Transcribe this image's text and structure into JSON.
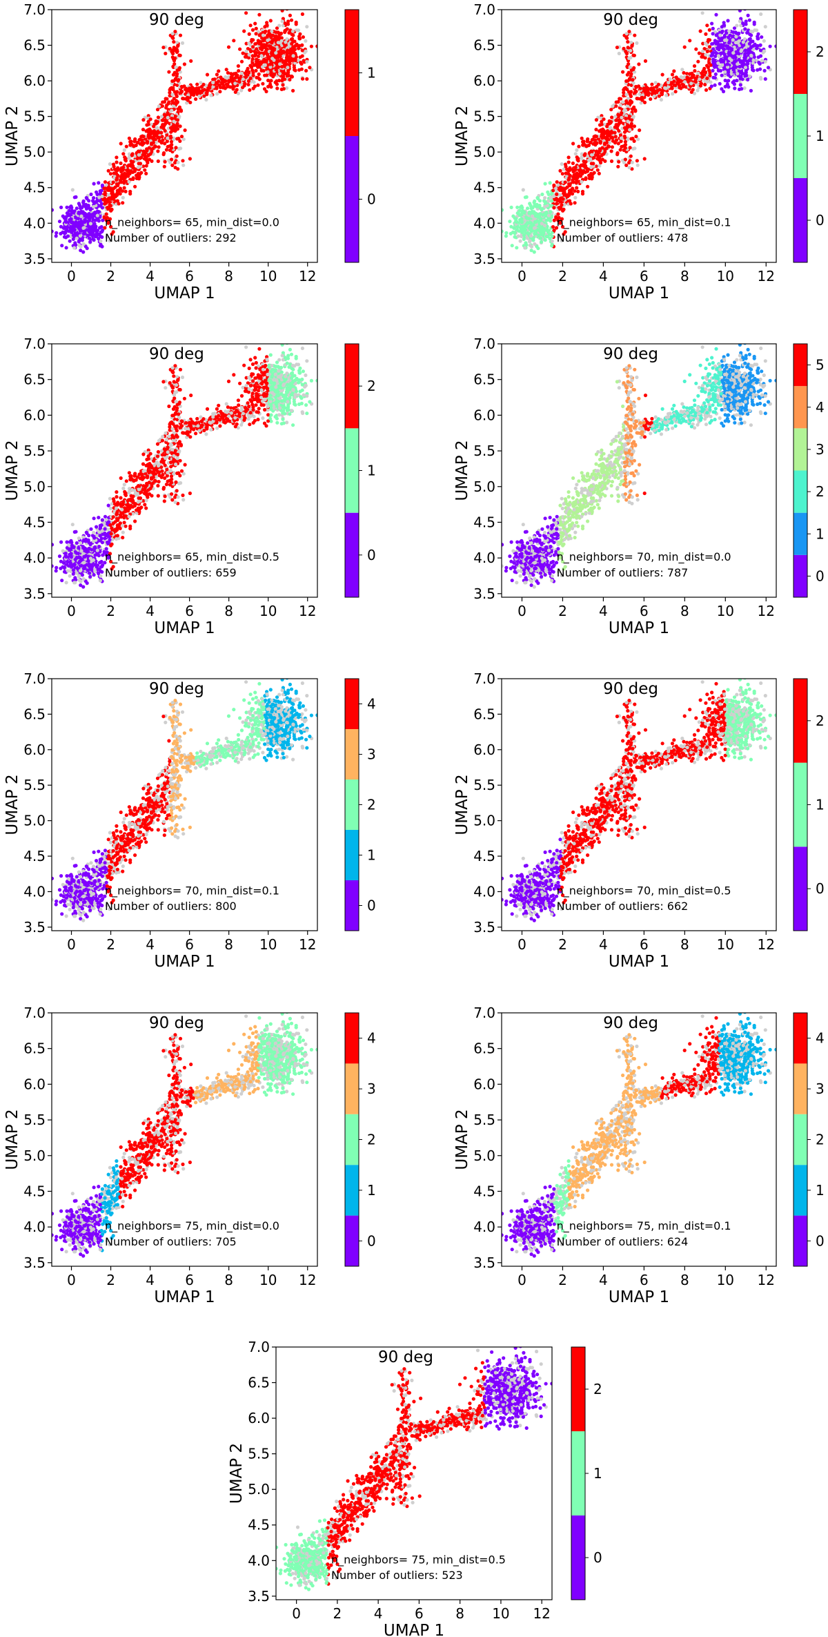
{
  "figure": {
    "description_free": true
  },
  "chart_data": [
    {
      "type": "scatter",
      "title": "90 deg",
      "xlabel": "UMAP 1",
      "ylabel": "UMAP 2",
      "xlim": [
        -1,
        12.5
      ],
      "ylim": [
        3.45,
        7.0
      ],
      "xticks": [
        0,
        2,
        4,
        6,
        8,
        10,
        12
      ],
      "yticks": [
        3.5,
        4.0,
        4.5,
        5.0,
        5.5,
        6.0,
        6.5,
        7.0
      ],
      "annotation": [
        "n_neighbors= 65, min_dist=0.0",
        "Number of outliers: 292"
      ],
      "n_neighbors": 65,
      "min_dist": 0.0,
      "outliers": 292,
      "colorbar": {
        "colors": [
          "#8000ff",
          "#ff0000"
        ],
        "labels": [
          "0",
          "1"
        ]
      },
      "series": [
        {
          "name": "0",
          "color": "#8000ff",
          "x_range": [
            -0.5,
            1.6
          ]
        },
        {
          "name": "1",
          "color": "#ff0000",
          "x_range": [
            1.6,
            12.0
          ]
        }
      ]
    },
    {
      "type": "scatter",
      "title": "90 deg",
      "xlabel": "UMAP 1",
      "ylabel": "UMAP 2",
      "xlim": [
        -1,
        12.5
      ],
      "ylim": [
        3.45,
        7.0
      ],
      "xticks": [
        0,
        2,
        4,
        6,
        8,
        10,
        12
      ],
      "yticks": [
        3.5,
        4.0,
        4.5,
        5.0,
        5.5,
        6.0,
        6.5,
        7.0
      ],
      "annotation": [
        "n_neighbors= 65, min_dist=0.1",
        "Number of outliers: 478"
      ],
      "n_neighbors": 65,
      "min_dist": 0.1,
      "outliers": 478,
      "colorbar": {
        "colors": [
          "#8000ff",
          "#80ffb4",
          "#ff0000"
        ],
        "labels": [
          "0",
          "1",
          "2"
        ]
      },
      "series": [
        {
          "name": "0",
          "color": "#8000ff",
          "x_range": [
            9.3,
            12.0
          ]
        },
        {
          "name": "1",
          "color": "#80ffb4",
          "x_range": [
            -0.5,
            1.5
          ]
        },
        {
          "name": "2",
          "color": "#ff0000",
          "x_range": [
            1.5,
            9.3
          ]
        }
      ]
    },
    {
      "type": "scatter",
      "title": "90 deg",
      "xlabel": "UMAP 1",
      "ylabel": "UMAP 2",
      "xlim": [
        -1,
        12.5
      ],
      "ylim": [
        3.45,
        7.0
      ],
      "xticks": [
        0,
        2,
        4,
        6,
        8,
        10,
        12
      ],
      "yticks": [
        3.5,
        4.0,
        4.5,
        5.0,
        5.5,
        6.0,
        6.5,
        7.0
      ],
      "annotation": [
        "n_neighbors= 65, min_dist=0.5",
        "Number of outliers: 659"
      ],
      "n_neighbors": 65,
      "min_dist": 0.5,
      "outliers": 659,
      "colorbar": {
        "colors": [
          "#8000ff",
          "#80ffb4",
          "#ff0000"
        ],
        "labels": [
          "0",
          "1",
          "2"
        ]
      },
      "series": [
        {
          "name": "0",
          "color": "#8000ff",
          "x_range": [
            -0.5,
            1.6
          ]
        },
        {
          "name": "1",
          "color": "#80ffb4",
          "x_range": [
            10.0,
            12.0
          ]
        },
        {
          "name": "2",
          "color": "#ff0000",
          "x_range": [
            2.3,
            10.0
          ]
        }
      ]
    },
    {
      "type": "scatter",
      "title": "90 deg",
      "xlabel": "UMAP 1",
      "ylabel": "UMAP 2",
      "xlim": [
        -1,
        12.5
      ],
      "ylim": [
        3.45,
        7.0
      ],
      "xticks": [
        0,
        2,
        4,
        6,
        8,
        10,
        12
      ],
      "yticks": [
        3.5,
        4.0,
        4.5,
        5.0,
        5.5,
        6.0,
        6.5,
        7.0
      ],
      "annotation": [
        "n_neighbors= 70, min_dist=0.0",
        "Number of outliers: 787"
      ],
      "n_neighbors": 70,
      "min_dist": 0.0,
      "outliers": 787,
      "colorbar": {
        "colors": [
          "#8000ff",
          "#1996f3",
          "#4df3ce",
          "#b2f396",
          "#ff964f",
          "#ff0000"
        ],
        "labels": [
          "0",
          "1",
          "2",
          "3",
          "4",
          "5"
        ]
      },
      "series": [
        {
          "name": "0",
          "color": "#8000ff",
          "x_range": [
            -0.5,
            1.4
          ]
        },
        {
          "name": "1",
          "color": "#1996f3",
          "x_range": [
            9.8,
            12.0
          ]
        },
        {
          "name": "2",
          "color": "#4df3ce",
          "x_range": [
            6.4,
            9.8
          ]
        },
        {
          "name": "3",
          "color": "#b2f396",
          "x_range": [
            2.2,
            5.0
          ]
        },
        {
          "name": "4",
          "color": "#ff964f",
          "x_range": [
            5.0,
            6.0
          ]
        },
        {
          "name": "5",
          "color": "#ff0000",
          "x_range": [
            5.3,
            6.4
          ]
        }
      ]
    },
    {
      "type": "scatter",
      "title": "90 deg",
      "xlabel": "UMAP 1",
      "ylabel": "UMAP 2",
      "xlim": [
        -1,
        12.5
      ],
      "ylim": [
        3.45,
        7.0
      ],
      "xticks": [
        0,
        2,
        4,
        6,
        8,
        10,
        12
      ],
      "yticks": [
        3.5,
        4.0,
        4.5,
        5.0,
        5.5,
        6.0,
        6.5,
        7.0
      ],
      "annotation": [
        "n_neighbors= 70, min_dist=0.1",
        "Number of outliers: 800"
      ],
      "n_neighbors": 70,
      "min_dist": 0.1,
      "outliers": 800,
      "colorbar": {
        "colors": [
          "#8000ff",
          "#00b5eb",
          "#80ffb4",
          "#ffb360",
          "#ff0000"
        ],
        "labels": [
          "0",
          "1",
          "2",
          "3",
          "4"
        ]
      },
      "series": [
        {
          "name": "0",
          "color": "#8000ff",
          "x_range": [
            -0.5,
            1.4
          ]
        },
        {
          "name": "1",
          "color": "#00b5eb",
          "x_range": [
            9.8,
            12.0
          ]
        },
        {
          "name": "2",
          "color": "#80ffb4",
          "x_range": [
            6.3,
            9.8
          ]
        },
        {
          "name": "3",
          "color": "#ffb360",
          "x_range": [
            5.0,
            6.3
          ]
        },
        {
          "name": "4",
          "color": "#ff0000",
          "x_range": [
            2.2,
            5.6
          ]
        }
      ]
    },
    {
      "type": "scatter",
      "title": "90 deg",
      "xlabel": "UMAP 1",
      "ylabel": "UMAP 2",
      "xlim": [
        -1,
        12.5
      ],
      "ylim": [
        3.45,
        7.0
      ],
      "xticks": [
        0,
        2,
        4,
        6,
        8,
        10,
        12
      ],
      "yticks": [
        3.5,
        4.0,
        4.5,
        5.0,
        5.5,
        6.0,
        6.5,
        7.0
      ],
      "annotation": [
        "n_neighbors= 70, min_dist=0.5",
        "Number of outliers: 662"
      ],
      "n_neighbors": 70,
      "min_dist": 0.5,
      "outliers": 662,
      "colorbar": {
        "colors": [
          "#8000ff",
          "#80ffb4",
          "#ff0000"
        ],
        "labels": [
          "0",
          "1",
          "2"
        ]
      },
      "series": [
        {
          "name": "0",
          "color": "#8000ff",
          "x_range": [
            -0.5,
            1.9
          ]
        },
        {
          "name": "1",
          "color": "#80ffb4",
          "x_range": [
            10.0,
            12.0
          ]
        },
        {
          "name": "2",
          "color": "#ff0000",
          "x_range": [
            1.9,
            10.0
          ]
        }
      ]
    },
    {
      "type": "scatter",
      "title": "90 deg",
      "xlabel": "UMAP 1",
      "ylabel": "UMAP 2",
      "xlim": [
        -1,
        12.5
      ],
      "ylim": [
        3.45,
        7.0
      ],
      "xticks": [
        0,
        2,
        4,
        6,
        8,
        10,
        12
      ],
      "yticks": [
        3.5,
        4.0,
        4.5,
        5.0,
        5.5,
        6.0,
        6.5,
        7.0
      ],
      "annotation": [
        "n_neighbors= 75, min_dist=0.0",
        "Number of outliers: 705"
      ],
      "n_neighbors": 75,
      "min_dist": 0.0,
      "outliers": 705,
      "colorbar": {
        "colors": [
          "#8000ff",
          "#00b5eb",
          "#80ffb4",
          "#ffb360",
          "#ff0000"
        ],
        "labels": [
          "0",
          "1",
          "2",
          "3",
          "4"
        ]
      },
      "series": [
        {
          "name": "0",
          "color": "#8000ff",
          "x_range": [
            -0.5,
            1.2
          ]
        },
        {
          "name": "1",
          "color": "#00b5eb",
          "x_range": [
            1.8,
            2.4
          ]
        },
        {
          "name": "2",
          "color": "#80ffb4",
          "x_range": [
            9.5,
            12.0
          ]
        },
        {
          "name": "3",
          "color": "#ffb360",
          "x_range": [
            6.2,
            9.5
          ]
        },
        {
          "name": "4",
          "color": "#ff0000",
          "x_range": [
            2.4,
            6.2
          ]
        }
      ]
    },
    {
      "type": "scatter",
      "title": "90 deg",
      "xlabel": "UMAP 1",
      "ylabel": "UMAP 2",
      "xlim": [
        -1,
        12.5
      ],
      "ylim": [
        3.45,
        7.0
      ],
      "xticks": [
        0,
        2,
        4,
        6,
        8,
        10,
        12
      ],
      "yticks": [
        3.5,
        4.0,
        4.5,
        5.0,
        5.5,
        6.0,
        6.5,
        7.0
      ],
      "annotation": [
        "n_neighbors= 75, min_dist=0.1",
        "Number of outliers: 624"
      ],
      "n_neighbors": 75,
      "min_dist": 0.1,
      "outliers": 624,
      "colorbar": {
        "colors": [
          "#8000ff",
          "#00b5eb",
          "#80ffb4",
          "#ffb360",
          "#ff0000"
        ],
        "labels": [
          "0",
          "1",
          "2",
          "3",
          "4"
        ]
      },
      "series": [
        {
          "name": "0",
          "color": "#8000ff",
          "x_range": [
            -0.5,
            1.6
          ]
        },
        {
          "name": "1",
          "color": "#00b5eb",
          "x_range": [
            9.7,
            12.0
          ]
        },
        {
          "name": "2",
          "color": "#80ffb4",
          "x_range": [
            1.6,
            2.3
          ]
        },
        {
          "name": "3",
          "color": "#ffb360",
          "x_range": [
            2.3,
            6.8
          ]
        },
        {
          "name": "4",
          "color": "#ff0000",
          "x_range": [
            6.8,
            9.7
          ]
        }
      ]
    },
    {
      "type": "scatter",
      "title": "90 deg",
      "xlabel": "UMAP 1",
      "ylabel": "UMAP 2",
      "xlim": [
        -1,
        12.5
      ],
      "ylim": [
        3.45,
        7.0
      ],
      "xticks": [
        0,
        2,
        4,
        6,
        8,
        10,
        12
      ],
      "yticks": [
        3.5,
        4.0,
        4.5,
        5.0,
        5.5,
        6.0,
        6.5,
        7.0
      ],
      "annotation": [
        "n_neighbors= 75, min_dist=0.5",
        "Number of outliers: 523"
      ],
      "n_neighbors": 75,
      "min_dist": 0.5,
      "outliers": 523,
      "colorbar": {
        "colors": [
          "#8000ff",
          "#80ffb4",
          "#ff0000"
        ],
        "labels": [
          "0",
          "1",
          "2"
        ]
      },
      "series": [
        {
          "name": "0",
          "color": "#8000ff",
          "x_range": [
            9.2,
            12.0
          ]
        },
        {
          "name": "1",
          "color": "#80ffb4",
          "x_range": [
            -0.5,
            1.5
          ]
        },
        {
          "name": "2",
          "color": "#ff0000",
          "x_range": [
            1.5,
            9.2
          ]
        }
      ]
    }
  ]
}
